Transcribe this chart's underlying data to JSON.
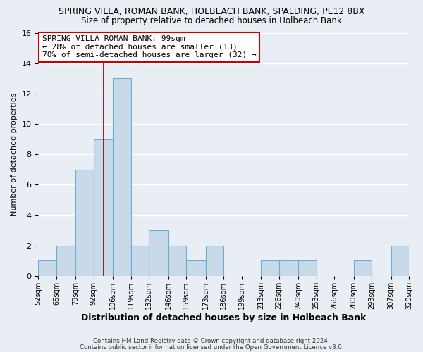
{
  "title": "SPRING VILLA, ROMAN BANK, HOLBEACH BANK, SPALDING, PE12 8BX",
  "subtitle": "Size of property relative to detached houses in Holbeach Bank",
  "xlabel": "Distribution of detached houses by size in Holbeach Bank",
  "ylabel": "Number of detached properties",
  "bar_edges": [
    52,
    65,
    79,
    92,
    106,
    119,
    132,
    146,
    159,
    173,
    186,
    199,
    213,
    226,
    240,
    253,
    266,
    280,
    293,
    307,
    320
  ],
  "bar_heights": [
    1,
    2,
    7,
    9,
    13,
    2,
    3,
    2,
    1,
    2,
    0,
    0,
    1,
    1,
    1,
    0,
    0,
    1,
    0,
    2
  ],
  "bar_color": "#c8d9ea",
  "bar_edge_color": "#6aaed6",
  "marker_value": 99,
  "marker_color": "#8b0000",
  "ylim": [
    0,
    16
  ],
  "yticks": [
    0,
    2,
    4,
    6,
    8,
    10,
    12,
    14,
    16
  ],
  "annotation_line1": "SPRING VILLA ROMAN BANK: 99sqm",
  "annotation_line2": "← 28% of detached houses are smaller (13)",
  "annotation_line3": "70% of semi-detached houses are larger (32) →",
  "annotation_box_color": "#ffffff",
  "annotation_box_edge_color": "#cc0000",
  "footer_line1": "Contains HM Land Registry data © Crown copyright and database right 2024.",
  "footer_line2": "Contains public sector information licensed under the Open Government Licence v3.0.",
  "background_color": "#e8eef4",
  "grid_color": "#ffffff",
  "title_fontsize": 9,
  "subtitle_fontsize": 8.5,
  "xlabel_fontsize": 9,
  "ylabel_fontsize": 8
}
